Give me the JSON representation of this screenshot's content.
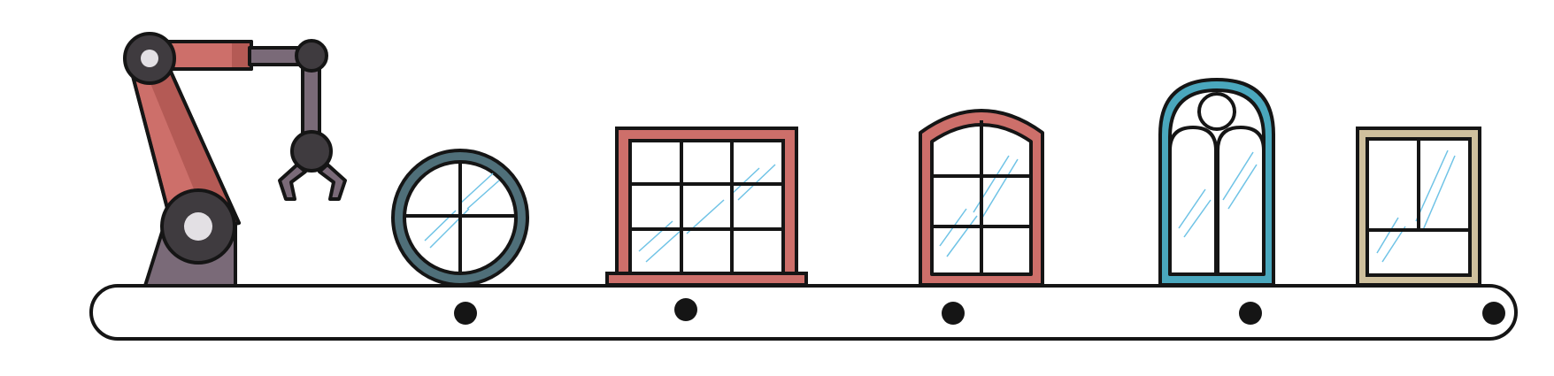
{
  "scene": {
    "description": "",
    "colors": {
      "outline": "#151515",
      "arm_red": "#cd6f6a",
      "arm_red_shade": "#b45a55",
      "arm_purple": "#7a6a78",
      "arm_dark": "#3f3b3f",
      "joint_light": "#e3e0e4",
      "frame_teal_dark": "#4f6f79",
      "frame_red": "#cd6f6a",
      "frame_blue": "#4aa7bd",
      "frame_beige": "#cfc09d",
      "glass_reflection": "#6fc3e6",
      "conveyor_fill": "#ffffff"
    },
    "objects": [
      {
        "name": "robot-arm",
        "icon": "robot-arm-icon"
      },
      {
        "name": "round-window",
        "icon": "round-window-icon"
      },
      {
        "name": "grid-window",
        "icon": "grid-window-icon"
      },
      {
        "name": "arched-window",
        "icon": "arched-window-icon"
      },
      {
        "name": "gothic-window",
        "icon": "gothic-window-icon"
      },
      {
        "name": "rectangular-window",
        "icon": "rectangular-window-icon"
      },
      {
        "name": "conveyor-belt",
        "icon": "conveyor-belt-icon"
      }
    ]
  }
}
